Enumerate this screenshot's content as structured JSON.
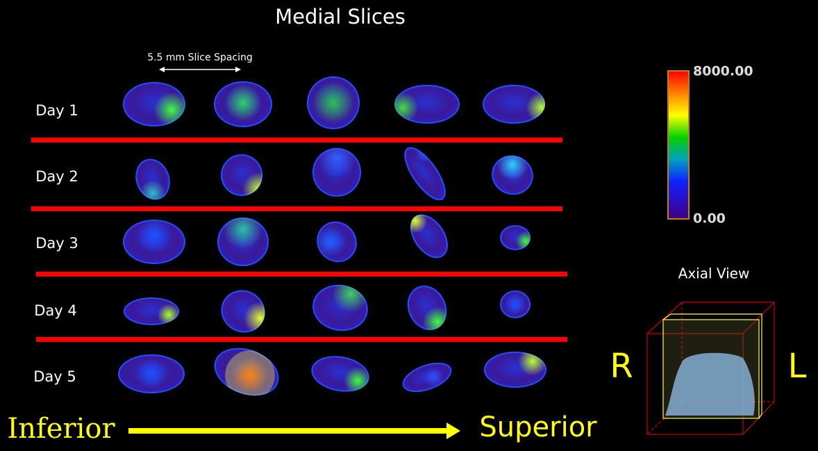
{
  "title": "Medial Slices",
  "spacing_label": "5.5 mm Slice Spacing",
  "rows": [
    "Day 1",
    "Day 2",
    "Day 3",
    "Day 4",
    "Day 5"
  ],
  "colorbar": {
    "max_label": "8000.00",
    "min_label": "0.00"
  },
  "axial_view": {
    "title": "Axial View",
    "right": "R",
    "left": "L"
  },
  "direction": {
    "from": "Inferior",
    "to": "Superior"
  }
}
